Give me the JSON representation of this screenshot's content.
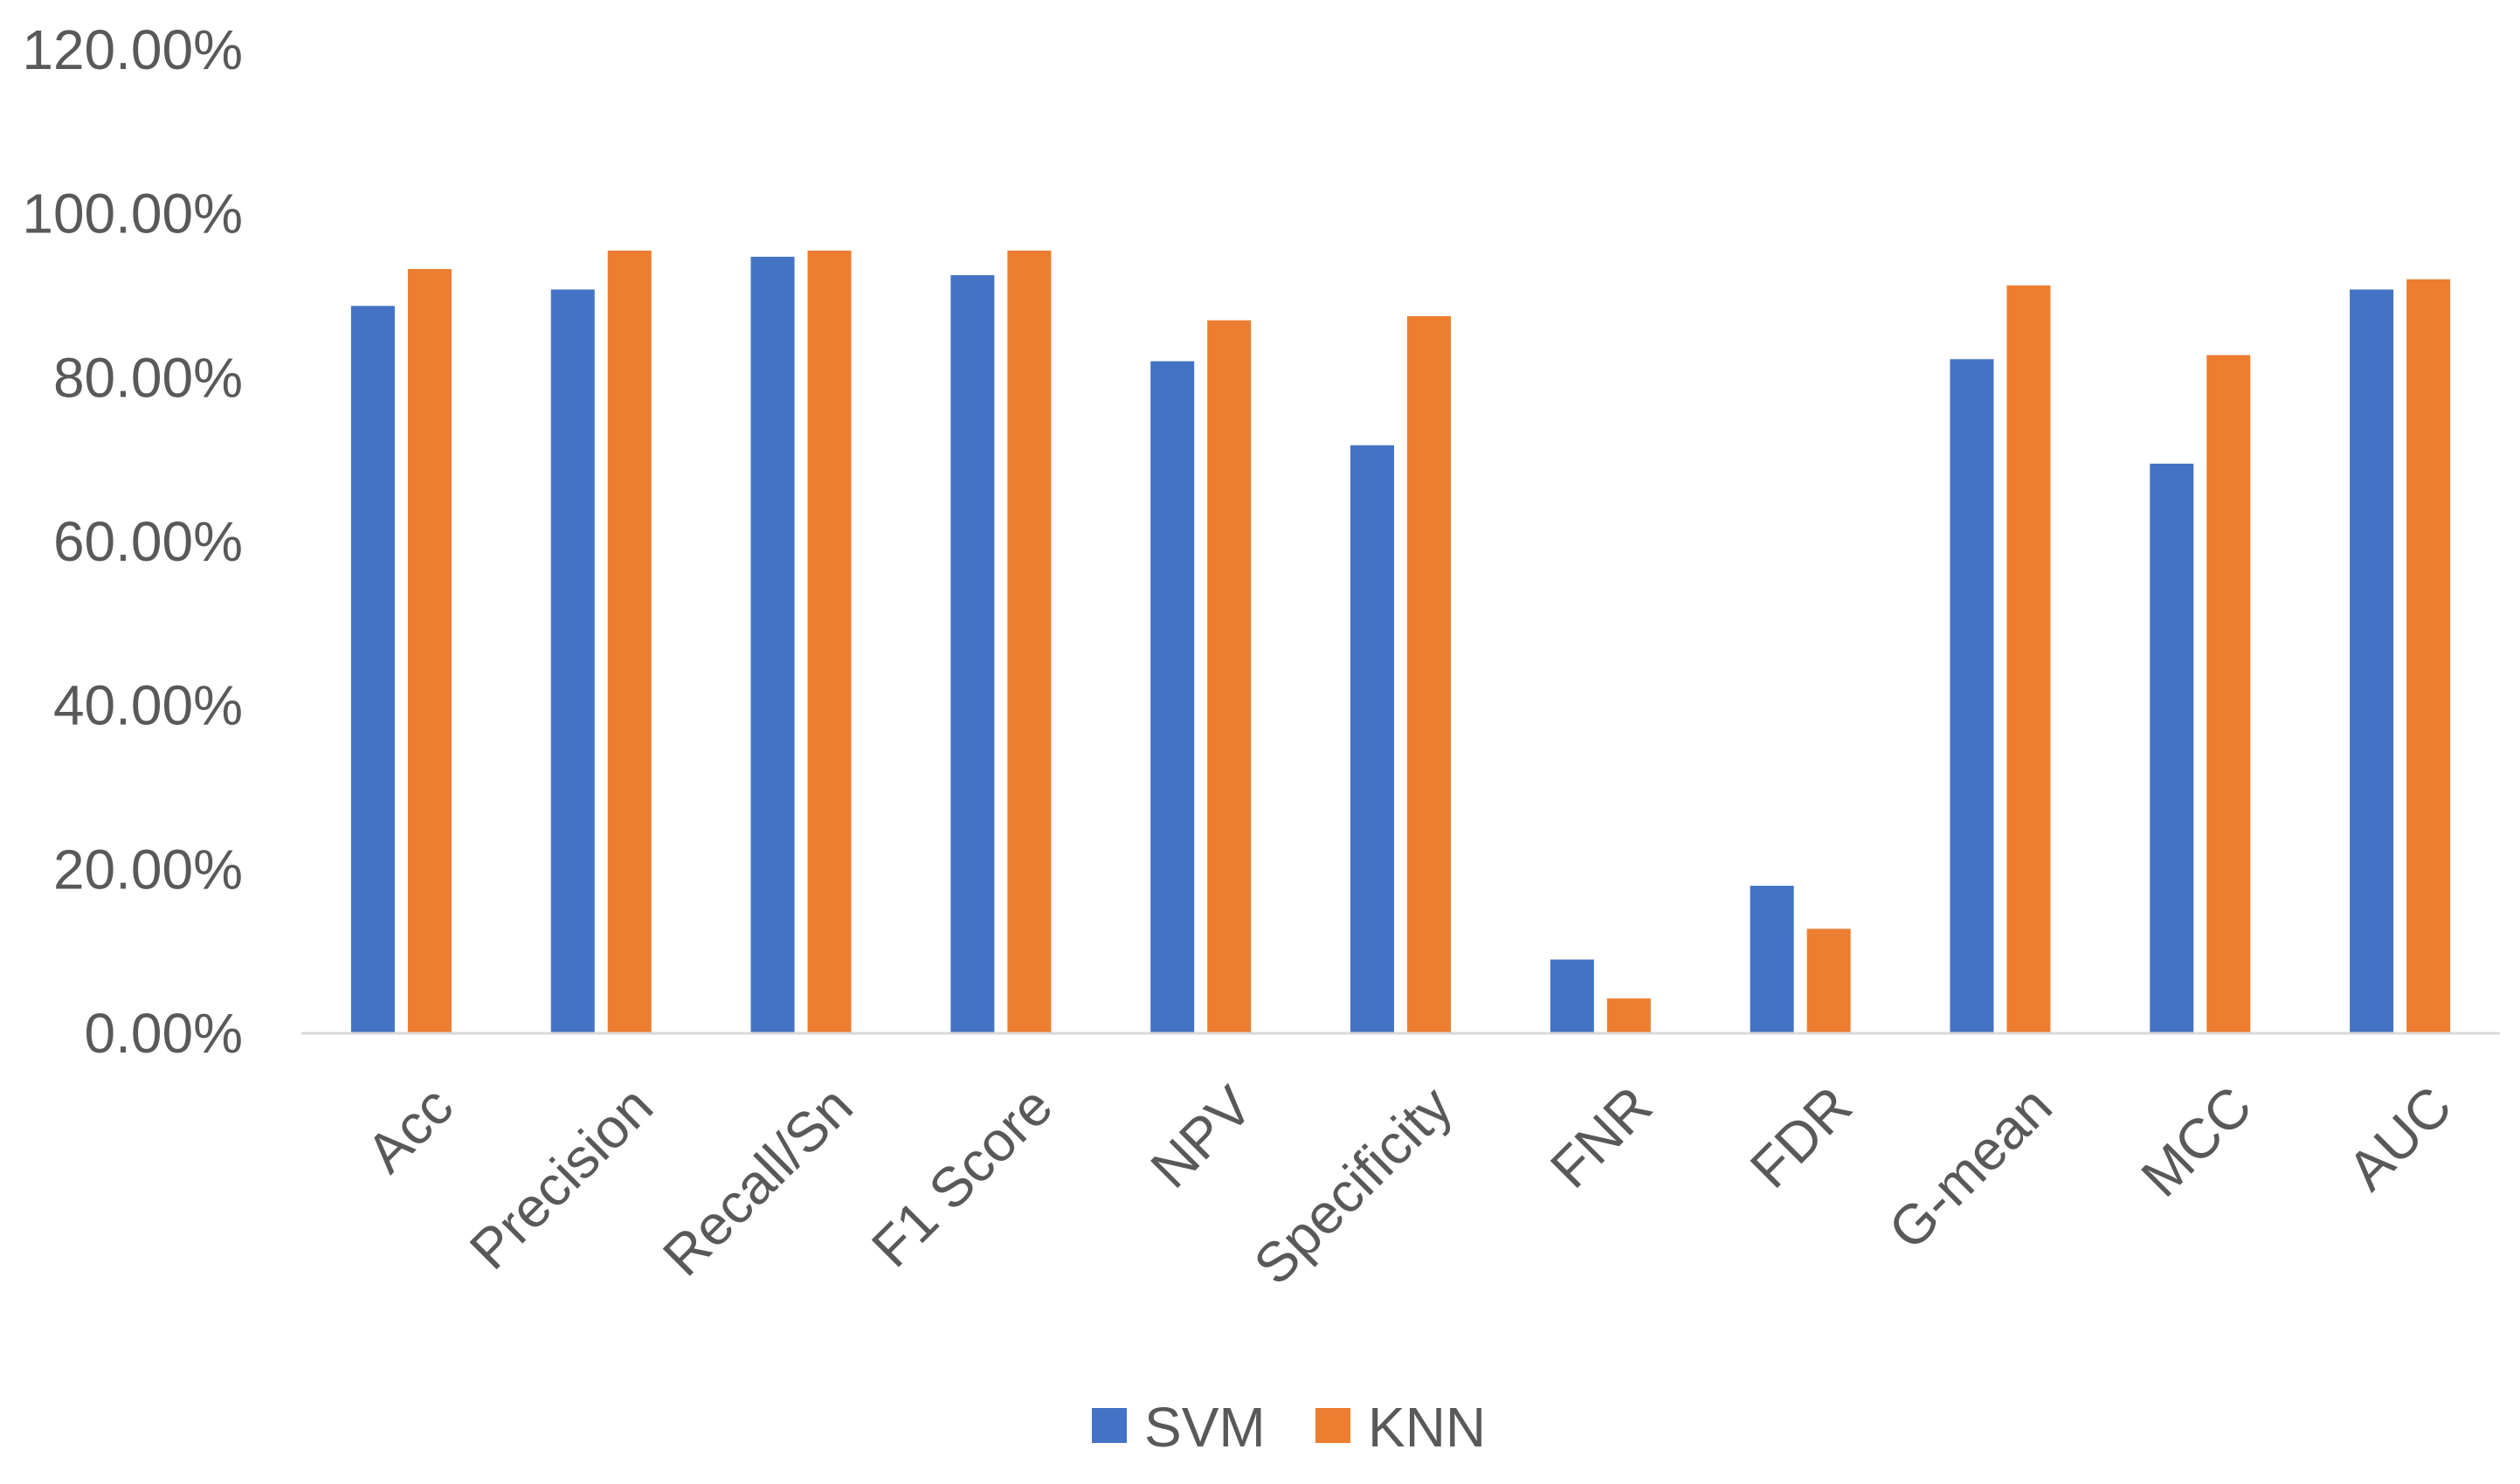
{
  "chart_data": {
    "type": "bar",
    "categories": [
      "Acc",
      "Precision",
      "Recall/Sn",
      "F1 Score",
      "NPV",
      "Specificity",
      "FNR",
      "FDR",
      "G-mean",
      "MCC",
      "AUC"
    ],
    "series": [
      {
        "name": "SVM",
        "color": "#4472C4",
        "values": [
          0.8875,
          0.9075,
          0.9475,
          0.925,
          0.82,
          0.7175,
          0.09,
          0.18,
          0.8225,
          0.695,
          0.9075
        ]
      },
      {
        "name": "KNN",
        "color": "#ED7D31",
        "values": [
          0.9325,
          0.955,
          0.955,
          0.955,
          0.87,
          0.875,
          0.0425,
          0.1275,
          0.9125,
          0.8275,
          0.92
        ]
      }
    ],
    "yticks": [
      "0.00%",
      "20.00%",
      "40.00%",
      "60.00%",
      "80.00%",
      "100.00%",
      "120.00%"
    ],
    "ylim": [
      0,
      1.2
    ],
    "grid": false,
    "legend_position": "bottom"
  }
}
